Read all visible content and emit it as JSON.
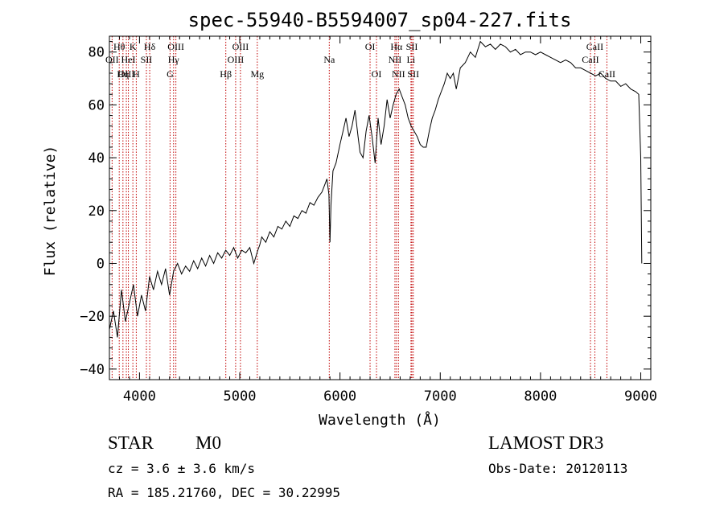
{
  "chart_data": {
    "type": "line",
    "title": "spec-55940-B5594007_sp04-227.fits",
    "xlabel": "Wavelength (Å)",
    "ylabel": "Flux (relative)",
    "xlim": [
      3700,
      9100
    ],
    "ylim": [
      -44,
      86
    ],
    "x_ticks": [
      4000,
      5000,
      6000,
      7000,
      8000,
      9000
    ],
    "y_ticks": [
      -40,
      -20,
      0,
      20,
      40,
      60,
      80
    ],
    "grid": false,
    "series": [
      {
        "name": "flux",
        "color": "#000000",
        "x": [
          3700,
          3740,
          3780,
          3820,
          3860,
          3900,
          3940,
          3980,
          4020,
          4060,
          4100,
          4140,
          4180,
          4220,
          4260,
          4300,
          4340,
          4380,
          4420,
          4460,
          4500,
          4540,
          4580,
          4620,
          4660,
          4700,
          4740,
          4780,
          4820,
          4860,
          4900,
          4940,
          4980,
          5020,
          5060,
          5100,
          5140,
          5180,
          5200,
          5220,
          5260,
          5300,
          5340,
          5380,
          5420,
          5460,
          5500,
          5540,
          5580,
          5620,
          5660,
          5700,
          5740,
          5780,
          5820,
          5850,
          5870,
          5890,
          5900,
          5910,
          5930,
          5960,
          6000,
          6030,
          6060,
          6090,
          6120,
          6150,
          6180,
          6200,
          6230,
          6260,
          6290,
          6320,
          6350,
          6380,
          6410,
          6440,
          6470,
          6500,
          6530,
          6560,
          6590,
          6620,
          6650,
          6680,
          6710,
          6740,
          6770,
          6800,
          6830,
          6860,
          6890,
          6920,
          6950,
          6980,
          7010,
          7040,
          7070,
          7100,
          7130,
          7160,
          7200,
          7250,
          7300,
          7350,
          7400,
          7450,
          7500,
          7550,
          7600,
          7650,
          7700,
          7750,
          7800,
          7850,
          7900,
          7950,
          8000,
          8050,
          8100,
          8150,
          8200,
          8250,
          8300,
          8350,
          8400,
          8450,
          8500,
          8550,
          8600,
          8650,
          8700,
          8750,
          8800,
          8850,
          8900,
          8950,
          8980,
          9000,
          9010
        ],
        "y": [
          -25,
          -18,
          -28,
          -10,
          -22,
          -15,
          -8,
          -20,
          -12,
          -18,
          -5,
          -10,
          -3,
          -8,
          -2,
          -12,
          -3,
          0,
          -4,
          -1,
          -3,
          1,
          -2,
          2,
          -1,
          3,
          0,
          4,
          2,
          5,
          3,
          6,
          2,
          5,
          4,
          6,
          0,
          5,
          7,
          10,
          8,
          12,
          10,
          14,
          13,
          16,
          14,
          18,
          17,
          20,
          19,
          23,
          22,
          25,
          27,
          30,
          32,
          26,
          8,
          22,
          35,
          38,
          45,
          50,
          55,
          48,
          52,
          58,
          48,
          42,
          40,
          50,
          56,
          48,
          38,
          55,
          45,
          52,
          62,
          55,
          60,
          64,
          66,
          63,
          60,
          55,
          52,
          50,
          48,
          45,
          44,
          44,
          50,
          55,
          58,
          62,
          65,
          68,
          72,
          70,
          72,
          66,
          74,
          76,
          80,
          78,
          84,
          82,
          83,
          81,
          83,
          82,
          80,
          81,
          79,
          80,
          80,
          79,
          80,
          79,
          78,
          77,
          76,
          77,
          76,
          74,
          74,
          73,
          72,
          71,
          72,
          70,
          69,
          69,
          67,
          68,
          66,
          65,
          64,
          40,
          0
        ]
      }
    ],
    "line_markers": [
      {
        "name": "Hθ",
        "x": 3798,
        "row": 0
      },
      {
        "name": "OII",
        "x": 3727,
        "row": 1
      },
      {
        "name": "OIII",
        "x": 3869,
        "row": 2
      },
      {
        "name": "K",
        "x": 3934,
        "row": 0
      },
      {
        "name": "HeI",
        "x": 3889,
        "row": 1
      },
      {
        "name": "Hη",
        "x": 3835,
        "row": 2
      },
      {
        "name": "SII",
        "x": 4069,
        "row": 1
      },
      {
        "name": "H",
        "x": 3968,
        "row": 2
      },
      {
        "name": "Hδ",
        "x": 4102,
        "row": 0
      },
      {
        "name": "OIII",
        "x": 4363,
        "row": 0
      },
      {
        "name": "Hγ",
        "x": 4340,
        "row": 1
      },
      {
        "name": "G",
        "x": 4305,
        "row": 2
      },
      {
        "name": "Hβ",
        "x": 4861,
        "row": 2
      },
      {
        "name": "OIII",
        "x": 4959,
        "row": 1
      },
      {
        "name": "OIII",
        "x": 5007,
        "row": 0
      },
      {
        "name": "Mg",
        "x": 5175,
        "row": 2
      },
      {
        "name": "Na",
        "x": 5893,
        "row": 1
      },
      {
        "name": "OI",
        "x": 6300,
        "row": 0
      },
      {
        "name": "OI",
        "x": 6364,
        "row": 2
      },
      {
        "name": "Hα",
        "x": 6563,
        "row": 0
      },
      {
        "name": "NII",
        "x": 6548,
        "row": 1
      },
      {
        "name": "NII",
        "x": 6583,
        "row": 2
      },
      {
        "name": "SII",
        "x": 6717,
        "row": 0
      },
      {
        "name": "Li",
        "x": 6708,
        "row": 1
      },
      {
        "name": "SII",
        "x": 6731,
        "row": 2
      },
      {
        "name": "CaII",
        "x": 8542,
        "row": 0
      },
      {
        "name": "CaII",
        "x": 8498,
        "row": 1
      },
      {
        "name": "CaII",
        "x": 8662,
        "row": 2
      }
    ]
  },
  "info": {
    "object_class": "STAR",
    "subclass": "M0",
    "survey": "LAMOST DR3",
    "redshift_text": "cz = 3.6 ± 3.6 km/s",
    "obs_date": "Obs-Date: 20120113",
    "coords": "RA = 185.21760, DEC =  30.22995"
  }
}
